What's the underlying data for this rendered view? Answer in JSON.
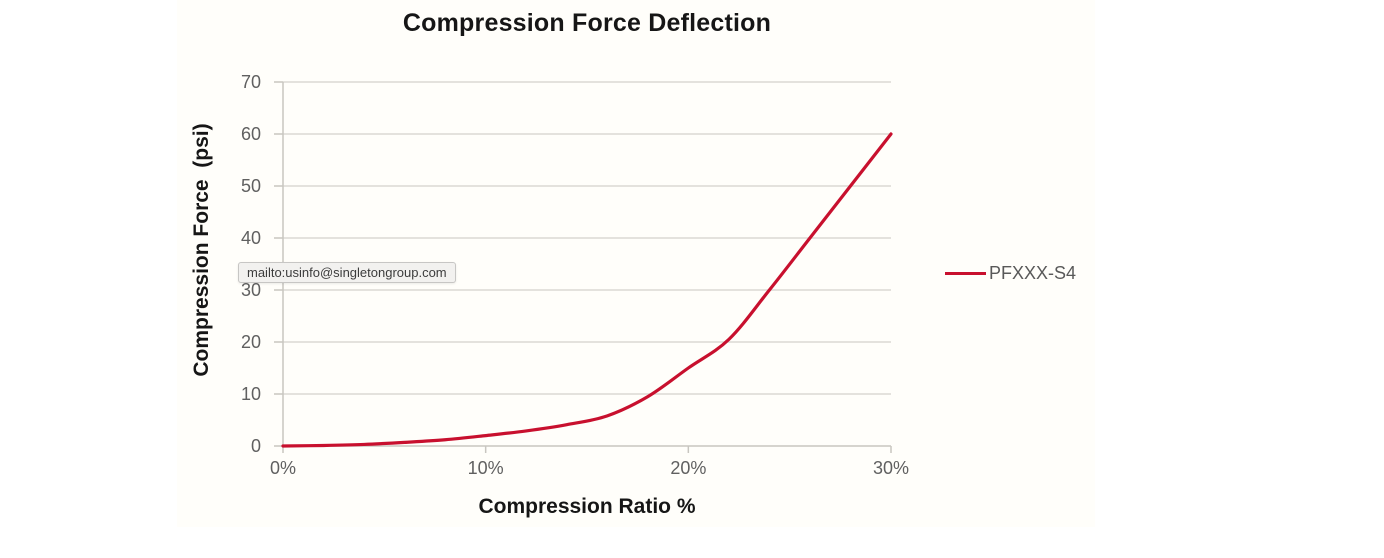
{
  "page": {
    "background": "#ffffff"
  },
  "tooltip": {
    "text": "mailto:usinfo@singletongroup.com"
  },
  "colors": {
    "series_red": "#c8102e",
    "gridline": "#dbd9d3",
    "axis_line": "#c8c6c0",
    "tick_label": "#606060",
    "title_text": "#161616",
    "legend_text": "#595959",
    "surface_bg": "#fffefa",
    "tooltip_bg": "#f2f1ef",
    "tooltip_border": "#c7c6c4",
    "tooltip_text": "#3c3c3c"
  },
  "chart_data": {
    "type": "line",
    "title": "Compression Force Deflection",
    "xlabel": "Compression Ratio %",
    "ylabel": "Compression Force  (psi)",
    "x_ticks": [
      "0%",
      "10%",
      "20%",
      "30%"
    ],
    "y_ticks": [
      0,
      10,
      20,
      30,
      40,
      50,
      60,
      70
    ],
    "xlim": [
      0,
      30
    ],
    "ylim": [
      0,
      70
    ],
    "grid": "horizontal-only",
    "legend_position": "right",
    "series": [
      {
        "name": "PFXXX-S4",
        "color": "#c8102e",
        "x": [
          0,
          2,
          4,
          6,
          8,
          10,
          12,
          14,
          16,
          18,
          20,
          22,
          24,
          26,
          28,
          30
        ],
        "values": [
          0,
          0.1,
          0.3,
          0.7,
          1.2,
          2,
          2.9,
          4.1,
          5.8,
          9.5,
          15,
          20.5,
          30,
          40,
          50,
          60
        ]
      }
    ]
  }
}
